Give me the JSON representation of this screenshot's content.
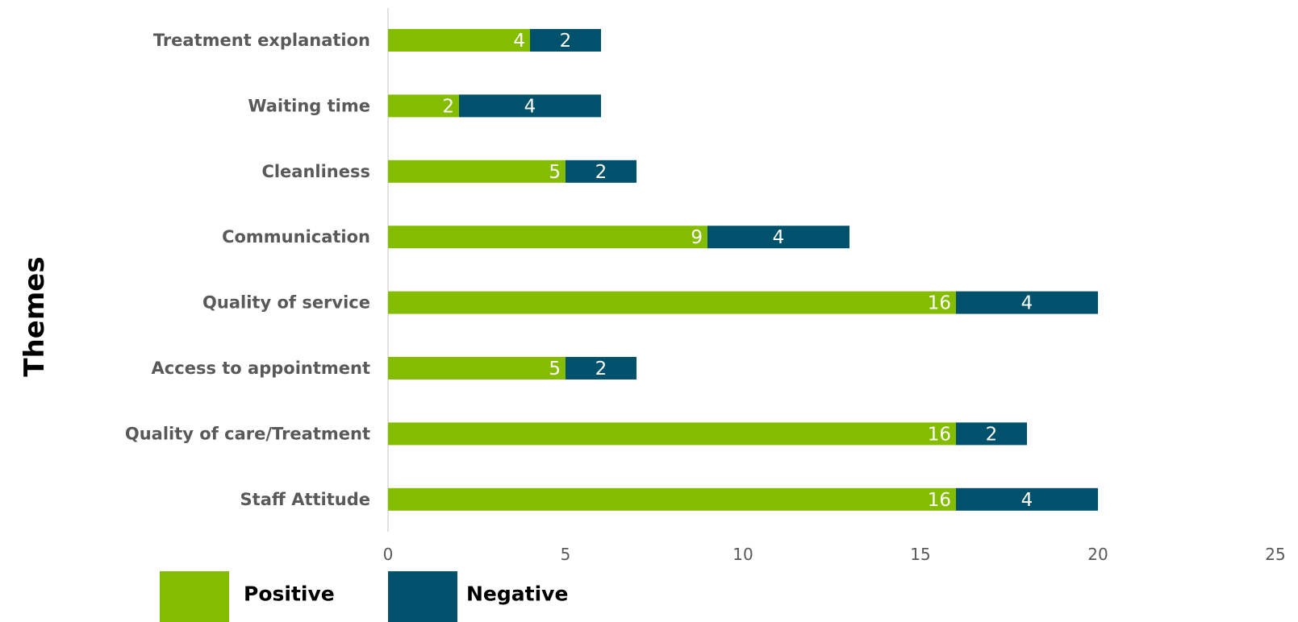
{
  "chart_data": {
    "type": "bar",
    "orientation": "horizontal",
    "stacked": true,
    "categories": [
      "Treatment explanation",
      "Waiting time",
      "Cleanliness",
      "Communication",
      "Quality of service",
      "Access to appointment",
      "Quality of care/Treatment",
      "Staff Attitude"
    ],
    "series": [
      {
        "name": "Positive",
        "color": "#84bd00",
        "values": [
          4,
          2,
          5,
          9,
          16,
          5,
          16,
          16
        ]
      },
      {
        "name": "Negative",
        "color": "#00516b",
        "values": [
          2,
          4,
          2,
          4,
          4,
          2,
          2,
          4
        ]
      }
    ],
    "ylabel": "Themes",
    "xlim": [
      0,
      25
    ],
    "xticks": [
      0,
      5,
      10,
      15,
      20,
      25
    ],
    "grid": false,
    "data_labels": true,
    "legend_position": "bottom-left"
  }
}
